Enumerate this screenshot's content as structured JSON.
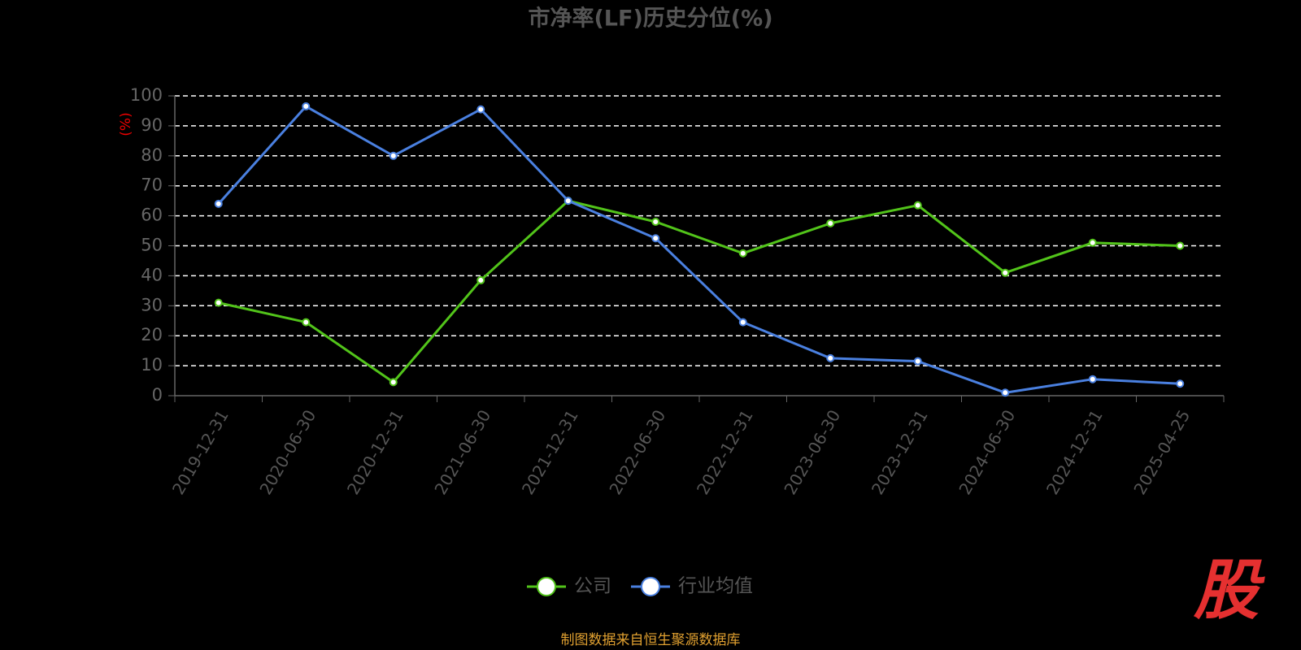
{
  "chart_data": {
    "type": "line",
    "title": "市净率(LF)历史分位(%)",
    "y_label": "(%)",
    "categories": [
      "2019-12-31",
      "2020-06-30",
      "2020-12-31",
      "2021-06-30",
      "2021-12-31",
      "2022-06-30",
      "2022-12-31",
      "2023-06-30",
      "2023-12-31",
      "2024-06-30",
      "2024-12-31",
      "2025-04-25"
    ],
    "series": [
      {
        "name": "公司",
        "color": "#52c41a",
        "values": [
          31,
          24.5,
          4.5,
          38.5,
          65,
          58,
          47.5,
          57.5,
          63.5,
          41,
          51,
          50
        ]
      },
      {
        "name": "行业均值",
        "color": "#4a80e0",
        "values": [
          64,
          96.5,
          80,
          95.5,
          65,
          52.5,
          24.5,
          12.5,
          11.5,
          1,
          5.5,
          4
        ]
      }
    ],
    "ylim": [
      0,
      100
    ],
    "yticks": [
      0,
      10,
      20,
      30,
      40,
      50,
      60,
      70,
      80,
      90,
      100
    ],
    "grid": true,
    "legend": "bottom",
    "source": "制图数据来自恒生聚源数据库",
    "logo": "股"
  }
}
